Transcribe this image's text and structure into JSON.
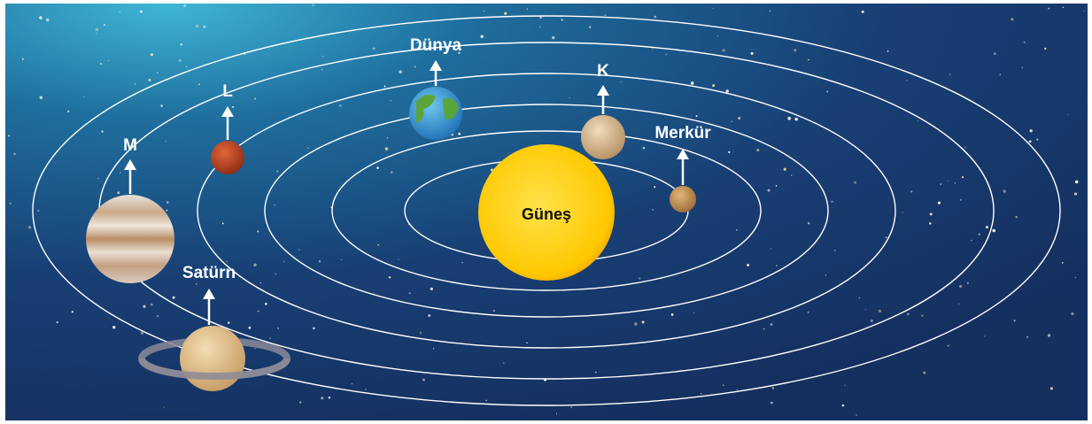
{
  "sun": {
    "label": "Güneş"
  },
  "planets": [
    {
      "label": "Merkür"
    },
    {
      "label": "K"
    },
    {
      "label": "Dünya"
    },
    {
      "label": "L"
    },
    {
      "label": "M"
    },
    {
      "label": "Satürn"
    }
  ]
}
